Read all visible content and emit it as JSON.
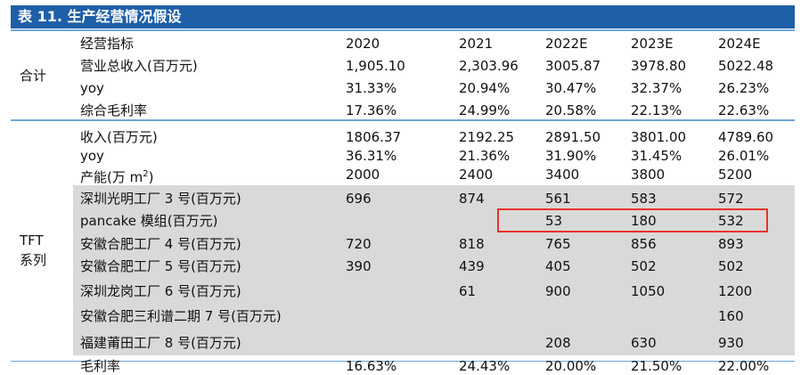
{
  "title": "表 11. 生产经营情况假设",
  "columns": [
    "经营指标",
    "2020",
    "2021",
    "2022E",
    "2023E",
    "2024E"
  ],
  "groups": {
    "total": {
      "label": "合计"
    },
    "tft": {
      "label1": "TFT",
      "label2": "系列"
    }
  },
  "rows": [
    {
      "label": "营业总收入(百万元)",
      "values": [
        "1,905.10",
        "2,303.96",
        "3005.87",
        "3978.80",
        "5022.48"
      ]
    },
    {
      "label": "yoy",
      "values": [
        "31.33%",
        "20.94%",
        "30.47%",
        "32.37%",
        "26.23%"
      ]
    },
    {
      "label": "综合毛利率",
      "values": [
        "17.36%",
        "24.99%",
        "20.58%",
        "22.13%",
        "22.63%"
      ]
    },
    {
      "label": "收入(百万元)",
      "values": [
        "1806.37",
        "2192.25",
        "2891.50",
        "3801.00",
        "4789.60"
      ]
    },
    {
      "label": "yoy",
      "values": [
        "36.31%",
        "21.36%",
        "31.90%",
        "31.45%",
        "26.01%"
      ]
    },
    {
      "label": "产能(万 m",
      "label_sup": "2",
      "label_tail": ")",
      "values": [
        "2000",
        "2400",
        "3400",
        "3800",
        "5200"
      ]
    },
    {
      "label": "深圳光明工厂 3 号(百万元)",
      "values": [
        "696",
        "874",
        "561",
        "583",
        "572"
      ]
    },
    {
      "label": "pancake 模组(百万元)",
      "values": [
        "",
        "",
        "53",
        "180",
        "532"
      ]
    },
    {
      "label": "安徽合肥工厂 4 号(百万元)",
      "values": [
        "720",
        "818",
        "765",
        "856",
        "893"
      ]
    },
    {
      "label": "安徽合肥工厂 5 号(百万元)",
      "values": [
        "390",
        "439",
        "405",
        "502",
        "502"
      ]
    },
    {
      "label": "深圳龙岗工厂 6 号(百万元)",
      "values": [
        "",
        "61",
        "900",
        "1050",
        "1200"
      ]
    },
    {
      "label": "安徽合肥三利谱二期 7 号(百万元)",
      "values": [
        "",
        "",
        "",
        "",
        "160"
      ]
    },
    {
      "label": "福建莆田工厂 8 号(百万元)",
      "values": [
        "",
        "",
        "208",
        "630",
        "930"
      ]
    },
    {
      "label": "毛利率",
      "values": [
        "16.63%",
        "24.43%",
        "20.00%",
        "21.50%",
        "22.00%"
      ]
    }
  ]
}
